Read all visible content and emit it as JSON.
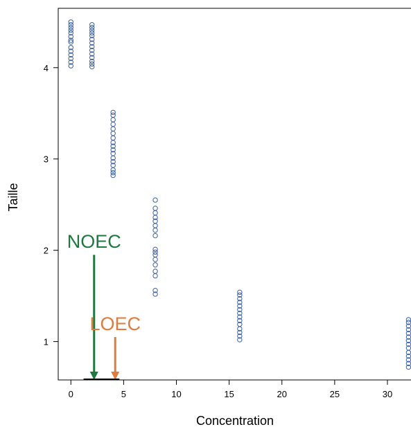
{
  "chart_data": {
    "type": "scatter",
    "title": "",
    "xlabel": "Concentration",
    "ylabel": "Taille",
    "xlim": [
      -1.2,
      32.3
    ],
    "ylim": [
      0.58,
      4.65
    ],
    "xticks": [
      0,
      5,
      10,
      15,
      20,
      25,
      30
    ],
    "yticks": [
      1,
      2,
      3,
      4
    ],
    "marker": "open-circle",
    "marker_color": "#3a5fa8",
    "grid": false,
    "groups": [
      {
        "x": 0,
        "y": [
          4.02,
          4.06,
          4.1,
          4.14,
          4.18,
          4.22,
          4.28,
          4.3,
          4.34,
          4.38,
          4.41,
          4.44,
          4.47,
          4.5
        ]
      },
      {
        "x": 2,
        "y": [
          4.01,
          4.04,
          4.07,
          4.11,
          4.15,
          4.19,
          4.23,
          4.27,
          4.31,
          4.35,
          4.38,
          4.41,
          4.44,
          4.47
        ]
      },
      {
        "x": 4,
        "y": [
          2.82,
          2.85,
          2.88,
          2.93,
          2.97,
          3.01,
          3.06,
          3.1,
          3.14,
          3.18,
          3.23,
          3.28,
          3.33,
          3.38,
          3.43,
          3.48,
          3.51
        ]
      },
      {
        "x": 8,
        "y": [
          1.52,
          1.56,
          1.72,
          1.77,
          1.84,
          1.9,
          1.95,
          1.98,
          2.01,
          2.16,
          2.22,
          2.27,
          2.32,
          2.36,
          2.41,
          2.46,
          2.55
        ]
      },
      {
        "x": 16,
        "y": [
          1.02,
          1.06,
          1.1,
          1.14,
          1.19,
          1.23,
          1.27,
          1.31,
          1.35,
          1.39,
          1.43,
          1.47,
          1.51,
          1.54
        ]
      },
      {
        "x": 32,
        "y": [
          0.72,
          0.76,
          0.8,
          0.84,
          0.88,
          0.93,
          0.97,
          1.01,
          1.05,
          1.09,
          1.13,
          1.17,
          1.21,
          1.24
        ]
      }
    ],
    "annotations": [
      {
        "label": "NOEC",
        "x": 2.2,
        "color": "#1e7a3c",
        "arrow_from_y": 1.95,
        "arrow_to_y": 0.58
      },
      {
        "label": "LOEC",
        "x": 4.2,
        "color": "#e07b39",
        "arrow_from_y": 1.05,
        "arrow_to_y": 0.58
      }
    ]
  }
}
